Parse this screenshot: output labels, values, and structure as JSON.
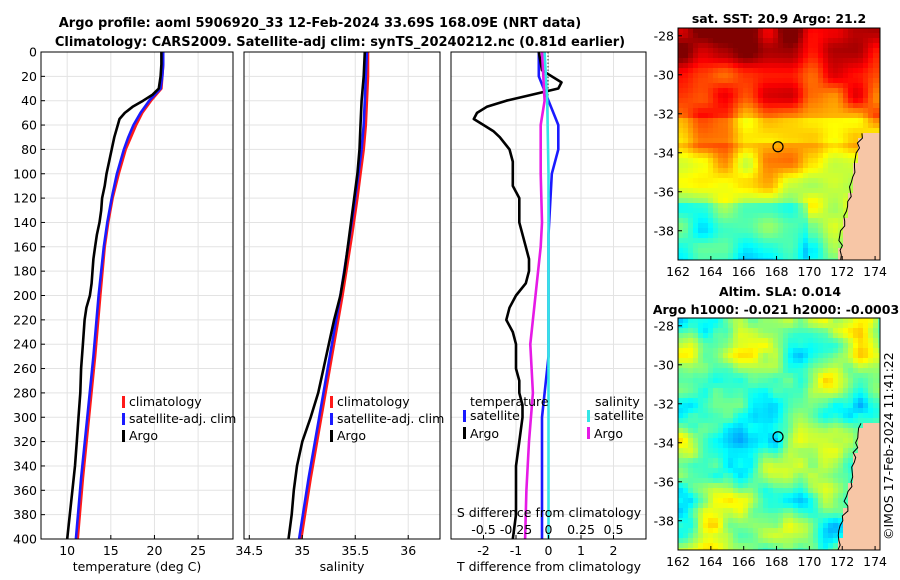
{
  "title_line1": "Argo profile: aoml 5906920_33 12-Feb-2024 33.69S 168.09E (NRT data)",
  "title_line2": "Climatology: CARS2009. Satellite-adj clim: synTS_20240212.nc (0.81d earlier)",
  "credit": "©IMOS 17-Feb-2024 11:41:22",
  "colors": {
    "climatology": "#ff1a1a",
    "satellite": "#1a1aff",
    "argo": "#000000",
    "sal_satellite": "#33e6e6",
    "sal_argo": "#e61ae6"
  },
  "chart_data": [
    {
      "id": "temp",
      "type": "line",
      "xlabel": "temperature (deg C)",
      "ylabel": "",
      "xlim": [
        7,
        29
      ],
      "ylim": [
        400,
        0
      ],
      "xticks": [
        10,
        15,
        20,
        25
      ],
      "yticks": [
        0,
        20,
        40,
        60,
        80,
        100,
        120,
        140,
        160,
        180,
        200,
        220,
        240,
        260,
        280,
        300,
        320,
        340,
        360,
        380,
        400
      ],
      "legend": [
        "climatology",
        "satellite-adj. clim",
        "Argo"
      ],
      "series": [
        {
          "name": "climatology",
          "depth": [
            0,
            10,
            20,
            30,
            40,
            50,
            60,
            70,
            80,
            100,
            120,
            140,
            160,
            200,
            250,
            300,
            350,
            400
          ],
          "values": [
            21.0,
            21.0,
            20.9,
            20.8,
            19.6,
            18.6,
            17.9,
            17.3,
            16.7,
            15.9,
            15.2,
            14.7,
            14.3,
            13.8,
            13.2,
            12.5,
            11.8,
            11.2
          ]
        },
        {
          "name": "satellite-adj. clim",
          "depth": [
            0,
            10,
            20,
            30,
            40,
            50,
            60,
            70,
            80,
            100,
            120,
            140,
            160,
            200,
            250,
            300,
            350,
            400
          ],
          "values": [
            21.0,
            21.0,
            20.9,
            20.7,
            19.4,
            18.4,
            17.6,
            17.0,
            16.5,
            15.7,
            15.1,
            14.6,
            14.2,
            13.6,
            13.0,
            12.3,
            11.6,
            11.0
          ]
        },
        {
          "name": "Argo",
          "depth": [
            0,
            10,
            20,
            30,
            35,
            40,
            45,
            50,
            55,
            60,
            70,
            80,
            90,
            100,
            110,
            120,
            130,
            140,
            150,
            160,
            170,
            180,
            190,
            200,
            210,
            220,
            240,
            260,
            280,
            300,
            320,
            340,
            360,
            380,
            400
          ],
          "values": [
            20.8,
            20.8,
            20.7,
            20.5,
            19.8,
            18.7,
            17.5,
            16.6,
            16.0,
            15.8,
            15.4,
            15.1,
            14.8,
            14.5,
            14.3,
            14.0,
            13.9,
            13.7,
            13.4,
            13.2,
            13.0,
            12.9,
            12.8,
            12.6,
            12.2,
            12.0,
            11.8,
            11.6,
            11.5,
            11.3,
            11.1,
            10.9,
            10.6,
            10.3,
            10.0
          ]
        }
      ]
    },
    {
      "id": "sal",
      "type": "line",
      "xlabel": "salinity",
      "ylabel": "",
      "xlim": [
        34.45,
        36.3
      ],
      "ylim": [
        400,
        0
      ],
      "xticks": [
        34.5,
        35,
        35.5,
        36
      ],
      "xticklabels": [
        "34.5",
        "35",
        "35.5",
        "36"
      ],
      "legend": [
        "climatology",
        "satellite-adj. clim",
        "Argo"
      ],
      "series": [
        {
          "name": "climatology",
          "depth": [
            0,
            20,
            40,
            60,
            80,
            100,
            120,
            150,
            200,
            250,
            300,
            350,
            400
          ],
          "values": [
            35.62,
            35.62,
            35.61,
            35.6,
            35.58,
            35.55,
            35.52,
            35.47,
            35.38,
            35.28,
            35.18,
            35.08,
            34.99
          ]
        },
        {
          "name": "satellite-adj. clim",
          "depth": [
            0,
            20,
            40,
            60,
            80,
            100,
            120,
            150,
            200,
            250,
            300,
            350,
            400
          ],
          "values": [
            35.61,
            35.6,
            35.59,
            35.58,
            35.56,
            35.53,
            35.5,
            35.45,
            35.36,
            35.26,
            35.16,
            35.06,
            34.97
          ]
        },
        {
          "name": "Argo",
          "depth": [
            0,
            20,
            40,
            60,
            80,
            100,
            120,
            140,
            160,
            180,
            200,
            220,
            240,
            260,
            280,
            300,
            320,
            340,
            360,
            380,
            400
          ],
          "values": [
            35.59,
            35.58,
            35.56,
            35.55,
            35.54,
            35.52,
            35.49,
            35.46,
            35.43,
            35.4,
            35.36,
            35.3,
            35.25,
            35.2,
            35.15,
            35.08,
            35.0,
            34.95,
            34.92,
            34.9,
            34.87
          ]
        }
      ]
    },
    {
      "id": "diff",
      "type": "line",
      "xlabel": "T difference from climatology",
      "top_label": "S difference from climatology",
      "xlim": [
        -3,
        3
      ],
      "ylim": [
        400,
        0
      ],
      "xticks": [
        -2,
        -1,
        0,
        1,
        2
      ],
      "s_ticks": [
        -0.5,
        -0.25,
        0,
        0.25,
        0.5
      ],
      "s_ticklabels": [
        "-0.5",
        "-0.25",
        "0",
        "0.25",
        "0.5"
      ],
      "legend_temperature_title": "temperature",
      "legend_salinity_title": "salinity",
      "legend_temperature": [
        "satellite",
        "Argo"
      ],
      "legend_salinity": [
        "satellite",
        "Argo"
      ],
      "series": [
        {
          "name": "T satellite",
          "depth": [
            0,
            20,
            40,
            60,
            80,
            100,
            150,
            200,
            250,
            300,
            350,
            400
          ],
          "values": [
            -0.3,
            -0.3,
            0.0,
            0.3,
            0.3,
            0.1,
            0.0,
            0.0,
            0.0,
            -0.2,
            -0.2,
            -0.2
          ]
        },
        {
          "name": "T Argo",
          "depth": [
            0,
            15,
            25,
            30,
            35,
            40,
            45,
            50,
            55,
            60,
            65,
            70,
            80,
            90,
            100,
            110,
            120,
            130,
            140,
            160,
            170,
            180,
            190,
            200,
            210,
            220,
            230,
            240,
            250,
            260,
            270,
            280,
            290,
            300,
            320,
            340,
            360,
            380,
            400
          ],
          "values": [
            -0.3,
            -0.2,
            0.4,
            0.3,
            -0.5,
            -1.3,
            -1.9,
            -2.2,
            -2.3,
            -2.0,
            -1.7,
            -1.5,
            -1.2,
            -1.1,
            -1.1,
            -1.1,
            -0.9,
            -0.9,
            -0.9,
            -0.7,
            -0.6,
            -0.6,
            -0.7,
            -1.0,
            -1.2,
            -1.3,
            -1.1,
            -1.0,
            -1.0,
            -1.0,
            -0.9,
            -0.9,
            -0.8,
            -0.8,
            -0.9,
            -1.0,
            -1.0,
            -1.0,
            -1.1
          ]
        },
        {
          "name": "S satellite",
          "depth": [
            0,
            40,
            100,
            200,
            300,
            400
          ],
          "values": [
            -0.03,
            -0.01,
            0.0,
            0.0,
            0.0,
            0.0
          ]
        },
        {
          "name": "S Argo",
          "depth": [
            0,
            40,
            60,
            100,
            140,
            160,
            200,
            240,
            280,
            320,
            360,
            400
          ],
          "values": [
            -0.05,
            -0.03,
            -0.06,
            -0.06,
            -0.05,
            -0.06,
            -0.1,
            -0.14,
            -0.12,
            -0.15,
            -0.17,
            -0.18
          ]
        }
      ]
    },
    {
      "id": "sst_map",
      "type": "heatmap",
      "title": "sat. SST: 20.9 Argo: 21.2",
      "xlim": [
        162,
        174.3
      ],
      "ylim": [
        -39.5,
        -27.6
      ],
      "xticks": [
        162,
        164,
        166,
        168,
        170,
        172,
        174
      ],
      "yticks": [
        -28,
        -30,
        -32,
        -34,
        -36,
        -38
      ],
      "profile_location": [
        168.09,
        -33.69
      ]
    },
    {
      "id": "sla_map",
      "type": "heatmap",
      "title": "Altim. SLA: 0.014",
      "subtitle": "Argo h1000: -0.021 h2000: -0.0003",
      "xlim": [
        162,
        174.3
      ],
      "ylim": [
        -39.5,
        -27.6
      ],
      "xticks": [
        162,
        164,
        166,
        168,
        170,
        172,
        174
      ],
      "yticks": [
        -28,
        -30,
        -32,
        -34,
        -36,
        -38
      ],
      "profile_location": [
        168.09,
        -33.69
      ]
    }
  ]
}
